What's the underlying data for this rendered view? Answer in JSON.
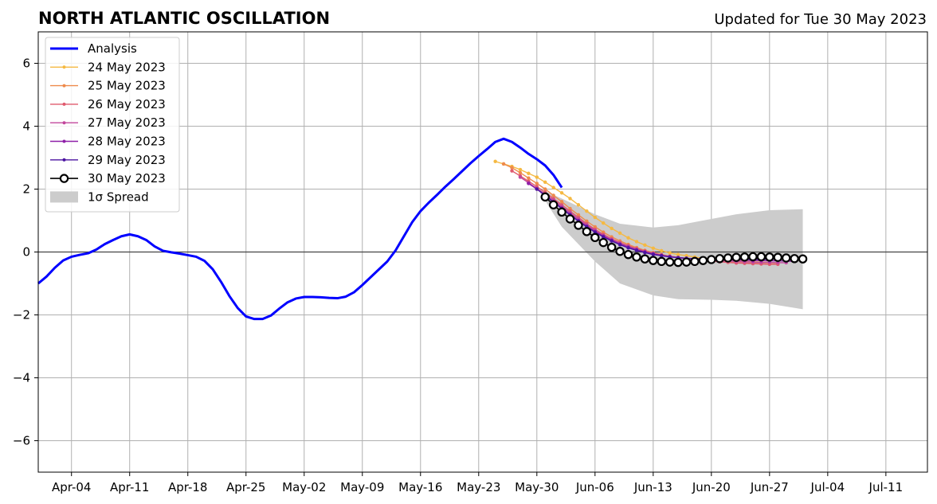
{
  "chart_data": {
    "type": "line",
    "title": "NORTH ATLANTIC OSCILLATION",
    "updated_text": "Updated for Tue 30 May 2023",
    "xlabel": "",
    "ylabel": "",
    "x_range": [
      "2023-03-31",
      "2023-07-16"
    ],
    "ylim": [
      -7,
      7
    ],
    "grid": true,
    "legend_position": "top-left",
    "x_ticks": [
      {
        "date": "2023-04-04",
        "label": "Apr-04"
      },
      {
        "date": "2023-04-11",
        "label": "Apr-11"
      },
      {
        "date": "2023-04-18",
        "label": "Apr-18"
      },
      {
        "date": "2023-04-25",
        "label": "Apr-25"
      },
      {
        "date": "2023-05-02",
        "label": "May-02"
      },
      {
        "date": "2023-05-09",
        "label": "May-09"
      },
      {
        "date": "2023-05-16",
        "label": "May-16"
      },
      {
        "date": "2023-05-23",
        "label": "May-23"
      },
      {
        "date": "2023-05-30",
        "label": "May-30"
      },
      {
        "date": "2023-06-06",
        "label": "Jun-06"
      },
      {
        "date": "2023-06-13",
        "label": "Jun-13"
      },
      {
        "date": "2023-06-20",
        "label": "Jun-20"
      },
      {
        "date": "2023-06-27",
        "label": "Jun-27"
      },
      {
        "date": "2023-07-04",
        "label": "Jul-04"
      },
      {
        "date": "2023-07-11",
        "label": "Jul-11"
      }
    ],
    "y_ticks": [
      {
        "value": 6,
        "label": "6"
      },
      {
        "value": 4,
        "label": "4"
      },
      {
        "value": 2,
        "label": "2"
      },
      {
        "value": 0,
        "label": "0"
      },
      {
        "value": -2,
        "label": "−2"
      },
      {
        "value": -4,
        "label": "−4"
      },
      {
        "value": -6,
        "label": "−6"
      }
    ],
    "spread": {
      "name": "1σ Spread",
      "color": "#cccccc",
      "x": [
        "2023-05-30",
        "2023-06-02",
        "2023-06-06",
        "2023-06-09",
        "2023-06-13",
        "2023-06-16",
        "2023-06-20",
        "2023-06-23",
        "2023-06-27",
        "2023-07-01"
      ],
      "upper": [
        2.05,
        1.7,
        1.2,
        0.9,
        0.78,
        0.85,
        1.05,
        1.2,
        1.33,
        1.36
      ],
      "lower": [
        2.05,
        0.8,
        -0.3,
        -1.0,
        -1.38,
        -1.5,
        -1.52,
        -1.55,
        -1.65,
        -1.82
      ]
    },
    "series": [
      {
        "name": "Analysis",
        "color": "#0000ff",
        "style": "thick-line",
        "start": "2023-03-31",
        "values": [
          -1.0,
          -0.78,
          -0.5,
          -0.27,
          -0.15,
          -0.09,
          -0.04,
          0.08,
          0.25,
          0.38,
          0.5,
          0.56,
          0.5,
          0.38,
          0.18,
          0.04,
          -0.01,
          -0.05,
          -0.1,
          -0.15,
          -0.28,
          -0.55,
          -0.95,
          -1.4,
          -1.78,
          -2.05,
          -2.13,
          -2.13,
          -2.02,
          -1.8,
          -1.6,
          -1.48,
          -1.43,
          -1.43,
          -1.44,
          -1.46,
          -1.47,
          -1.42,
          -1.28,
          -1.05,
          -0.8,
          -0.55,
          -0.3,
          0.05,
          0.5,
          0.95,
          1.3,
          1.57,
          1.82,
          2.08,
          2.32,
          2.57,
          2.82,
          3.05,
          3.27,
          3.5,
          3.6,
          3.5,
          3.32,
          3.12,
          2.95,
          2.75,
          2.45,
          2.05
        ]
      },
      {
        "name": "24 May 2023",
        "color": "#f5b942",
        "style": "small-dots",
        "start": "2023-05-25",
        "values": [
          2.88,
          2.8,
          2.72,
          2.62,
          2.5,
          2.38,
          2.22,
          2.05,
          1.88,
          1.7,
          1.5,
          1.3,
          1.1,
          0.92,
          0.75,
          0.6,
          0.45,
          0.33,
          0.22,
          0.12,
          0.04,
          -0.03,
          -0.08,
          -0.12,
          -0.16,
          -0.2,
          -0.22,
          -0.24,
          -0.26,
          -0.28,
          -0.3,
          -0.31,
          -0.32,
          -0.33,
          -0.34
        ]
      },
      {
        "name": "25 May 2023",
        "color": "#ee8a4c",
        "style": "small-dots",
        "start": "2023-05-26",
        "values": [
          2.8,
          2.68,
          2.52,
          2.35,
          2.18,
          2.0,
          1.8,
          1.6,
          1.38,
          1.18,
          0.98,
          0.8,
          0.63,
          0.48,
          0.35,
          0.24,
          0.14,
          0.05,
          -0.02,
          -0.08,
          -0.13,
          -0.17,
          -0.2,
          -0.23,
          -0.26,
          -0.28,
          -0.3,
          -0.32,
          -0.34,
          -0.35,
          -0.36,
          -0.37,
          -0.38,
          -0.38
        ]
      },
      {
        "name": "26 May 2023",
        "color": "#e05a6e",
        "style": "small-dots",
        "start": "2023-05-27",
        "values": [
          2.58,
          2.42,
          2.25,
          2.08,
          1.9,
          1.7,
          1.5,
          1.3,
          1.1,
          0.9,
          0.72,
          0.56,
          0.42,
          0.3,
          0.2,
          0.11,
          0.03,
          -0.04,
          -0.09,
          -0.14,
          -0.18,
          -0.21,
          -0.24,
          -0.27,
          -0.29,
          -0.31,
          -0.33,
          -0.35,
          -0.36,
          -0.37,
          -0.38,
          -0.39,
          -0.39
        ]
      },
      {
        "name": "27 May 2023",
        "color": "#c2479c",
        "style": "small-dots",
        "start": "2023-05-28",
        "values": [
          2.38,
          2.2,
          2.02,
          1.84,
          1.65,
          1.45,
          1.25,
          1.05,
          0.86,
          0.69,
          0.53,
          0.4,
          0.28,
          0.18,
          0.09,
          0.01,
          -0.05,
          -0.1,
          -0.14,
          -0.18,
          -0.21,
          -0.23,
          -0.25,
          -0.27,
          -0.28,
          -0.29,
          -0.3,
          -0.31,
          -0.32,
          -0.33,
          -0.33,
          -0.34,
          -0.34
        ]
      },
      {
        "name": "28 May 2023",
        "color": "#8e1fa8",
        "style": "small-dots",
        "start": "2023-05-29",
        "values": [
          2.18,
          2.0,
          1.8,
          1.6,
          1.4,
          1.2,
          1.0,
          0.82,
          0.65,
          0.5,
          0.37,
          0.25,
          0.15,
          0.07,
          0.0,
          -0.06,
          -0.11,
          -0.15,
          -0.18,
          -0.2,
          -0.22,
          -0.23,
          -0.24,
          -0.25,
          -0.25,
          -0.26,
          -0.26,
          -0.27,
          -0.27,
          -0.28,
          -0.28,
          -0.29,
          -0.3
        ]
      },
      {
        "name": "29 May 2023",
        "color": "#4b13a0",
        "style": "small-dots",
        "start": "2023-05-30",
        "values": [
          2.0,
          1.8,
          1.58,
          1.38,
          1.18,
          0.98,
          0.8,
          0.63,
          0.48,
          0.35,
          0.23,
          0.13,
          0.05,
          -0.02,
          -0.08,
          -0.12,
          -0.16,
          -0.18,
          -0.2,
          -0.21,
          -0.22,
          -0.22,
          -0.23,
          -0.23,
          -0.23,
          -0.23,
          -0.23,
          -0.23,
          -0.23,
          -0.23
        ]
      },
      {
        "name": "30 May 2023",
        "color": "#000000",
        "style": "open-circles",
        "start": "2023-05-31",
        "values": [
          1.75,
          1.5,
          1.27,
          1.05,
          0.85,
          0.65,
          0.46,
          0.3,
          0.15,
          0.02,
          -0.08,
          -0.16,
          -0.22,
          -0.27,
          -0.3,
          -0.32,
          -0.33,
          -0.32,
          -0.3,
          -0.27,
          -0.24,
          -0.21,
          -0.19,
          -0.17,
          -0.16,
          -0.15,
          -0.15,
          -0.16,
          -0.17,
          -0.19,
          -0.21,
          -0.22
        ]
      }
    ]
  }
}
